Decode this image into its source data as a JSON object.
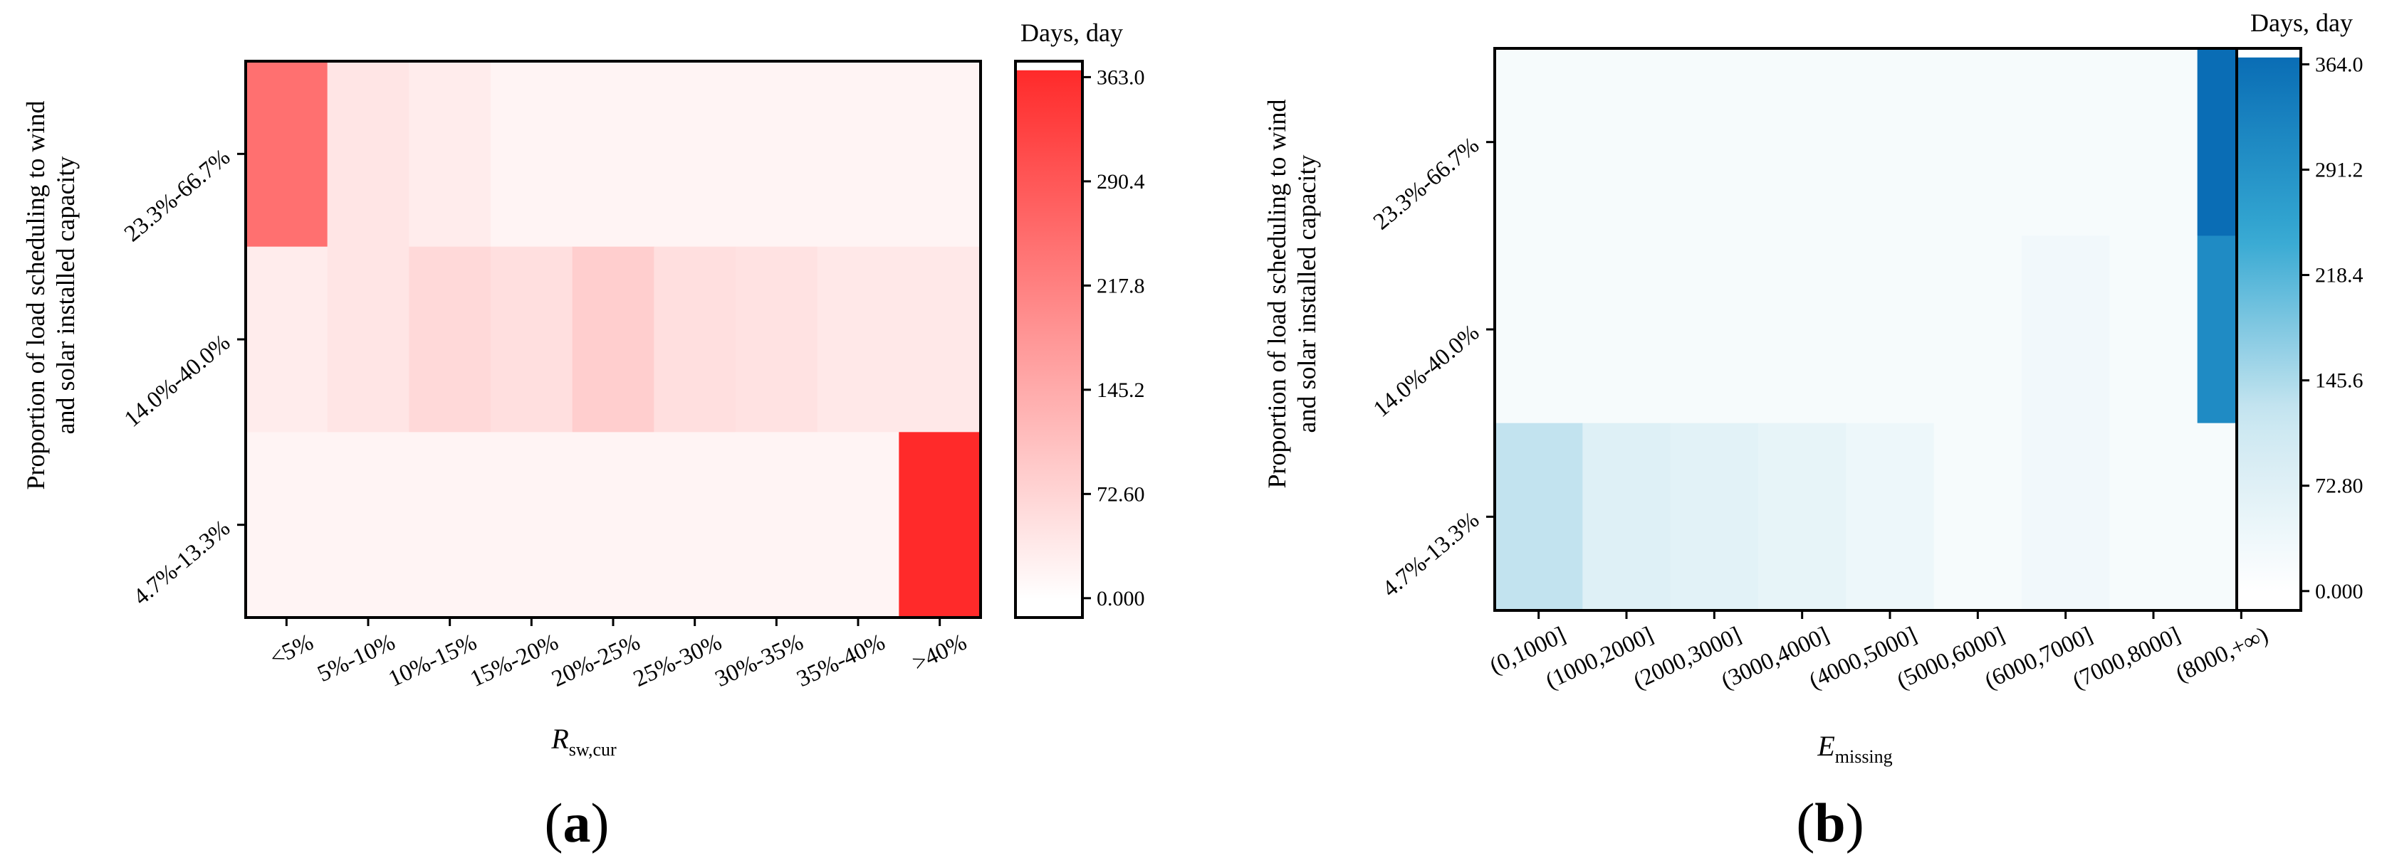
{
  "figure": {
    "panels": [
      "a",
      "b"
    ]
  },
  "chart_data": [
    {
      "type": "heatmap",
      "panel_label": "a",
      "xlabel_main": "R",
      "xlabel_sub": "sw,cur",
      "ylabel_line1": "Proportion of load scheduling to wind",
      "ylabel_line2": "and solar installed capacity",
      "x_categories": [
        "<5%",
        "5%-10%",
        "10%-15%",
        "15%-20%",
        "20%-25%",
        "25%-30%",
        "30%-35%",
        "35%-40%",
        ">40%"
      ],
      "y_categories": [
        "23.3%-66.7%",
        "14.0%-40.0%",
        "4.7%-13.3%"
      ],
      "values": [
        [
          240,
          35,
          22,
          8,
          8,
          8,
          8,
          8,
          8
        ],
        [
          22,
          35,
          55,
          45,
          75,
          45,
          40,
          30,
          30
        ],
        [
          8,
          8,
          8,
          8,
          8,
          8,
          8,
          8,
          363
        ]
      ],
      "colorbar_title": "Days, day",
      "colorbar_ticks": [
        "363.0",
        "290.4",
        "217.8",
        "145.2",
        "72.60",
        "0.000"
      ],
      "vmin": 0,
      "vmax": 363,
      "color_low": "#ffffff",
      "color_high": "#ff2a2a"
    },
    {
      "type": "heatmap",
      "panel_label": "b",
      "xlabel_main": "E",
      "xlabel_sub": "missing",
      "ylabel_line1": "Proportion of load scheduling to wind",
      "ylabel_line2": "and solar installed capacity",
      "x_categories": [
        "(0,1000]",
        "(1000,2000]",
        "(2000,3000]",
        "(3000,4000]",
        "(4000,5000]",
        "(5000,6000]",
        "(6000,7000]",
        "(7000,8000]",
        "(8000,+∞)"
      ],
      "y_categories": [
        "23.3%-66.7%",
        "14.0%-40.0%",
        "4.7%-13.3%"
      ],
      "values": [
        [
          10,
          10,
          10,
          10,
          10,
          10,
          10,
          10,
          364
        ],
        [
          10,
          10,
          10,
          10,
          10,
          10,
          22,
          10,
          300
        ],
        [
          120,
          65,
          55,
          45,
          30,
          10,
          22,
          10,
          10
        ]
      ],
      "colorbar_title": "Days, day",
      "colorbar_ticks": [
        "364.0",
        "291.2",
        "218.4",
        "145.6",
        "72.80",
        "0.000"
      ],
      "vmin": 0,
      "vmax": 364,
      "color_stops": [
        "#ffffff",
        "#c9e6f0",
        "#34a8d2",
        "#0a6db5"
      ]
    }
  ]
}
